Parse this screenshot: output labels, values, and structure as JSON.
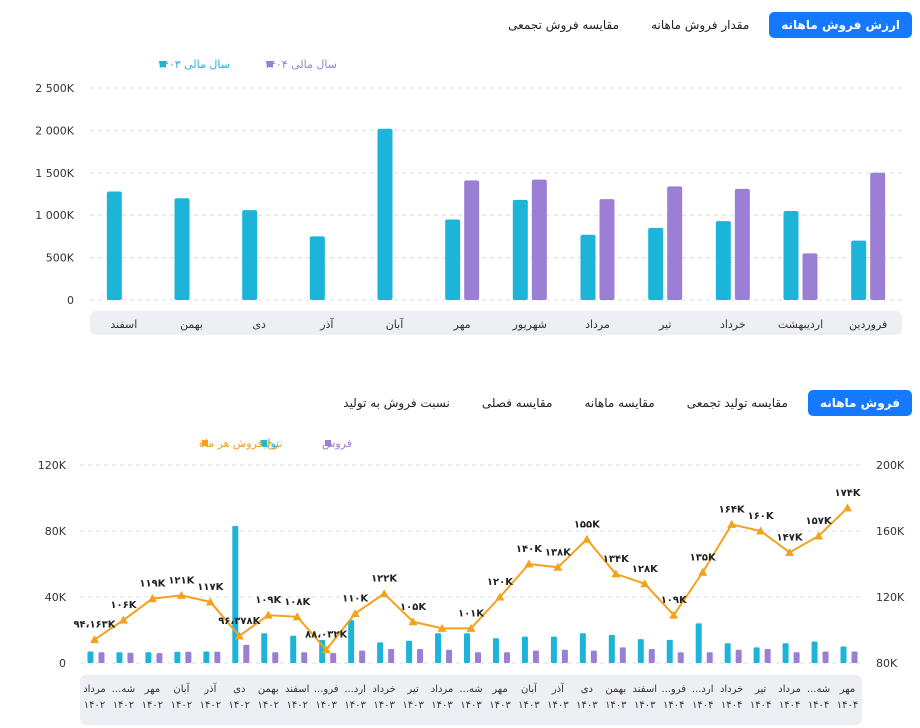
{
  "top_tabs": [
    {
      "label": "ارزش فروش ماهانه",
      "active": true
    },
    {
      "label": "مقدار فروش ماهانه",
      "active": false
    },
    {
      "label": "مقایسه فروش تجمعی",
      "active": false
    }
  ],
  "bottom_tabs": [
    {
      "label": "فروش ماهانه",
      "active": true
    },
    {
      "label": "مقایسه تولید تجمعی",
      "active": false
    },
    {
      "label": "مقایسه ماهانه",
      "active": false
    },
    {
      "label": "مقایسه فصلی",
      "active": false
    },
    {
      "label": "نسبت فروش به تولید",
      "active": false
    }
  ],
  "colors": {
    "accent": "#1479ff",
    "cyan": "#1cb5d9",
    "purple": "#9b7fd4",
    "orange": "#f4a11d"
  },
  "chart_data": [
    {
      "type": "bar",
      "categories": [
        "فروردین",
        "اردیبهشت",
        "خرداد",
        "تیر",
        "مرداد",
        "شهریور",
        "مهر",
        "آبان",
        "آذر",
        "دی",
        "بهمن",
        "اسفند"
      ],
      "series": [
        {
          "name": "سال مالی ۱۴۰۳",
          "color": "#1cb5d9",
          "values": [
            700000,
            1050000,
            930000,
            850000,
            770000,
            1180000,
            950000,
            2020000,
            750000,
            1060000,
            1200000,
            1280000
          ]
        },
        {
          "name": "سال مالی ۱۴۰۴",
          "color": "#9b7fd4",
          "values": [
            1500000,
            550000,
            1310000,
            1340000,
            1190000,
            1420000,
            1410000,
            null,
            null,
            null,
            null,
            null
          ]
        }
      ],
      "ylim": [
        0,
        2500000
      ],
      "yticks": [
        "0",
        "500K",
        "1 000K",
        "1 500K",
        "2 000K",
        "2 500K"
      ],
      "grid": true,
      "legend": "top-left"
    },
    {
      "type": "bar",
      "categories": [
        "مرداد ۱۴۰۲",
        "شهریور ۱۴۰۲",
        "مهر ۱۴۰۲",
        "آبان ۱۴۰۲",
        "آذر ۱۴۰۲",
        "دی ۱۴۰۲",
        "بهمن ۱۴۰۲",
        "اسفند ۱۴۰۲",
        "فروردین ۱۴۰۳",
        "اردیبهشت ۱۴۰۳",
        "خرداد ۱۴۰۳",
        "تیر ۱۴۰۳",
        "مرداد ۱۴۰۳",
        "شهریور ۱۴۰۳",
        "مهر ۱۴۰۳",
        "آبان ۱۴۰۳",
        "آذر ۱۴۰۳",
        "دی ۱۴۰۳",
        "بهمن ۱۴۰۳",
        "اسفند ۱۴۰۳",
        "فروردین ۱۴۰۴",
        "اردیبهشت ۱۴۰۴",
        "خرداد ۱۴۰۴",
        "تیر ۱۴۰۴",
        "مرداد ۱۴۰۴",
        "شهریور ۱۴۰۴",
        "مهر ۱۴۰۴"
      ],
      "category_labels": [
        [
          "مرداد",
          "۱۴۰۲"
        ],
        [
          "شه...",
          "۱۴۰۲"
        ],
        [
          "مهر",
          "۱۴۰۲"
        ],
        [
          "آبان",
          "۱۴۰۲"
        ],
        [
          "آذر",
          "۱۴۰۲"
        ],
        [
          "دی",
          "۱۴۰۲"
        ],
        [
          "بهمن",
          "۱۴۰۲"
        ],
        [
          "اسفند",
          "۱۴۰۲"
        ],
        [
          "فرو...",
          "۱۴۰۳"
        ],
        [
          "ارد...",
          "۱۴۰۳"
        ],
        [
          "خرداد",
          "۱۴۰۳"
        ],
        [
          "تیر",
          "۱۴۰۳"
        ],
        [
          "مرداد",
          "۱۴۰۳"
        ],
        [
          "شه...",
          "۱۴۰۳"
        ],
        [
          "مهر",
          "۱۴۰۳"
        ],
        [
          "آبان",
          "۱۴۰۳"
        ],
        [
          "آذر",
          "۱۴۰۳"
        ],
        [
          "دی",
          "۱۴۰۳"
        ],
        [
          "بهمن",
          "۱۴۰۳"
        ],
        [
          "اسفند",
          "۱۴۰۳"
        ],
        [
          "فرو...",
          "۱۴۰۴"
        ],
        [
          "ارد...",
          "۱۴۰۴"
        ],
        [
          "خرداد",
          "۱۴۰۴"
        ],
        [
          "تیر",
          "۱۴۰۴"
        ],
        [
          "مرداد",
          "۱۴۰۴"
        ],
        [
          "شه...",
          "۱۴۰۴"
        ],
        [
          "مهر",
          "۱۴۰۴"
        ]
      ],
      "series": [
        {
          "name": "فروش",
          "type": "bar",
          "axis": "left",
          "color": "#9b7fd4",
          "values": [
            6500,
            6200,
            6000,
            6800,
            6800,
            11000,
            6500,
            6500,
            6000,
            7500,
            8500,
            8500,
            8000,
            6500,
            6500,
            7500,
            8000,
            7500,
            9500,
            8500,
            6500,
            6500,
            8000,
            8500,
            6500,
            7000,
            7000
          ]
        },
        {
          "name": "تولید",
          "type": "bar",
          "axis": "left",
          "color": "#1cb5d9",
          "values": [
            7000,
            6500,
            6500,
            6800,
            7000,
            83000,
            18000,
            16500,
            14000,
            26000,
            12500,
            13500,
            18000,
            18000,
            15000,
            16000,
            16000,
            18000,
            17000,
            14500,
            14000,
            24000,
            12000,
            9500,
            12000,
            13000,
            10000
          ]
        },
        {
          "name": "نرخ فروش هر ماه",
          "type": "line",
          "axis": "right",
          "color": "#f4a11d",
          "values": [
            94163,
            106000,
            119000,
            121000,
            117000,
            96378,
            109000,
            108000,
            88032,
            110000,
            122000,
            105000,
            101000,
            101000,
            120000,
            140000,
            138000,
            155000,
            134000,
            128000,
            109000,
            135000,
            164000,
            160000,
            147000,
            157000,
            174000
          ]
        }
      ],
      "point_labels": [
        "۹۴،۱۶۳K",
        "۱۰۶K",
        "۱۱۹K",
        "۱۲۱K",
        "۱۱۷K",
        "۹۶،۳۷۸K",
        "۱۰۹K",
        "۱۰۸K",
        "۸۸،۰۳۲K",
        "۱۱۰K",
        "۱۲۲K",
        "۱۰۵K",
        "",
        "۱۰۱K",
        "۱۲۰K",
        "۱۴۰K",
        "۱۳۸K",
        "۱۵۵K",
        "۱۳۴K",
        "۱۲۸K",
        "۱۰۹K",
        "۱۳۵K",
        "۱۶۴K",
        "۱۶۰K",
        "۱۴۷K",
        "۱۵۷K",
        "۱۷۴K"
      ],
      "ylim_left": [
        0,
        120000
      ],
      "yticks_left": [
        "0",
        "40K",
        "80K",
        "120K"
      ],
      "ylim_right": [
        80000,
        200000
      ],
      "yticks_right": [
        "80K",
        "120K",
        "160K",
        "200K"
      ],
      "grid": true,
      "legend": "top-left"
    }
  ]
}
